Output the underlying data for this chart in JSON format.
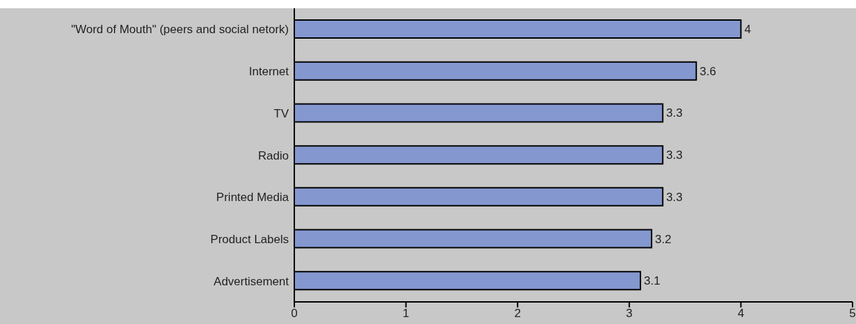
{
  "chart_data": {
    "type": "bar",
    "orientation": "horizontal",
    "categories": [
      "\"Word of Mouth\" (peers and social netork)",
      "Internet",
      "TV",
      "Radio",
      "Printed Media",
      "Product Labels",
      "Advertisement"
    ],
    "values": [
      4,
      3.6,
      3.3,
      3.3,
      3.3,
      3.2,
      3.1
    ],
    "color": "#8497cf",
    "xlim": [
      0,
      5
    ],
    "xticks": [
      0,
      1,
      2,
      3,
      4,
      5
    ],
    "grid": false,
    "data_labels": true
  }
}
